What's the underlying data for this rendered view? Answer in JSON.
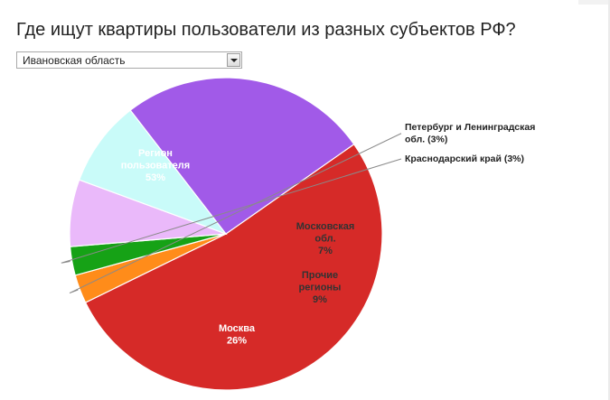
{
  "page": {
    "title": "Где ищут квартиры пользователи из разных субъектов РФ?"
  },
  "region_select": {
    "selected": "Ивановская область"
  },
  "chart_data": {
    "type": "pie",
    "title": "",
    "slices": [
      {
        "label_lines": [
          "Регион",
          "пользователя"
        ],
        "pct": "53%",
        "value": 53,
        "color": "#d62a28",
        "label_color": "#ffffff",
        "label_mode": "inside"
      },
      {
        "label_lines": [
          "Петербург и Ленинградская",
          "обл. (3%)"
        ],
        "pct": "",
        "value": 3,
        "color": "#ff8c1a",
        "label_color": "#222222",
        "label_mode": "outside"
      },
      {
        "label_lines": [
          "Краснодарский край (3%)"
        ],
        "pct": "",
        "value": 3,
        "color": "#16a216",
        "label_color": "#222222",
        "label_mode": "outside"
      },
      {
        "label_lines": [
          "Московская",
          "обл."
        ],
        "pct": "7%",
        "value": 7,
        "color": "#eab9fa",
        "label_color": "#333333",
        "label_mode": "inside"
      },
      {
        "label_lines": [
          "Прочие",
          "регионы"
        ],
        "pct": "9%",
        "value": 9,
        "color": "#c9fbf9",
        "label_color": "#333333",
        "label_mode": "inside"
      },
      {
        "label_lines": [
          "Москва"
        ],
        "pct": "26%",
        "value": 26,
        "color": "#a15ae8",
        "label_color": "#ffffff",
        "label_mode": "inside"
      }
    ]
  }
}
